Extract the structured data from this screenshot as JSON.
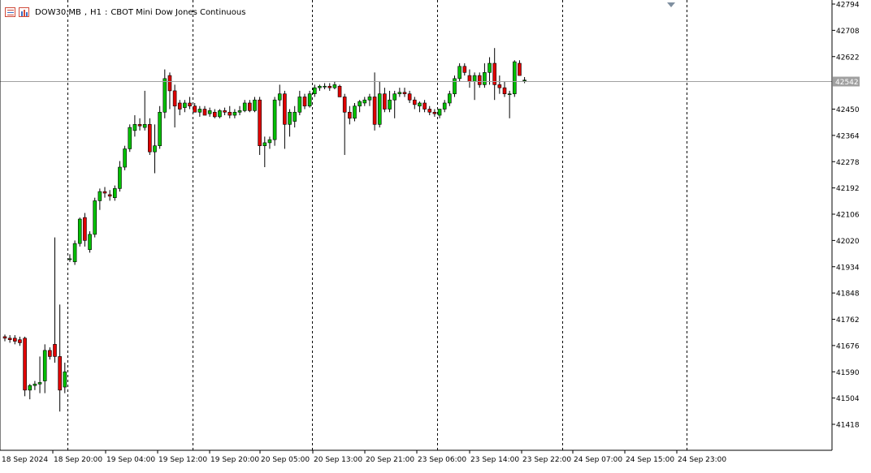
{
  "header": {
    "symbol": "DOW30.MB",
    "timeframe": "H1",
    "description": "CBOT Mini Dow Jones Continuous",
    "icons": [
      "market-watch-icon",
      "chart-window-icon"
    ]
  },
  "price_labels": [
    "42794",
    "42708",
    "42622",
    "42542",
    "42450",
    "42364",
    "42278",
    "42192",
    "42106",
    "42020",
    "41934",
    "41848",
    "41762",
    "41676",
    "41590",
    "41504",
    "41418"
  ],
  "time_labels": [
    "18 Sep 2024",
    "18 Sep 20:00",
    "19 Sep 04:00",
    "19 Sep 12:00",
    "19 Sep 20:00",
    "20 Sep 05:00",
    "20 Sep 13:00",
    "20 Sep 21:00",
    "23 Sep 06:00",
    "23 Sep 14:00",
    "23 Sep 22:00",
    "24 Sep 07:00",
    "24 Sep 15:00",
    "24 Sep 23:00"
  ],
  "colors": {
    "bull": "#00c000",
    "bear": "#e00000",
    "wick": "#000000",
    "grid": "#000000",
    "price_line": "#a0a0a0",
    "bid_marker": "#a0a0a0",
    "background": "#ffffff"
  },
  "chart_data": {
    "type": "candlestick",
    "symbol": "DOW30.MB",
    "timeframe": "H1",
    "y_range": [
      41360,
      42800
    ],
    "current_price": 42542,
    "bid_label": "42542",
    "separators_after_index": [
      12,
      37,
      61,
      86,
      111,
      136
    ],
    "candles": [
      [
        41705,
        41712,
        41690,
        41700
      ],
      [
        41700,
        41710,
        41685,
        41695
      ],
      [
        41700,
        41710,
        41680,
        41690
      ],
      [
        41695,
        41705,
        41675,
        41685
      ],
      [
        41700,
        41705,
        41510,
        41530
      ],
      [
        41530,
        41550,
        41500,
        41545
      ],
      [
        41545,
        41560,
        41530,
        41550
      ],
      [
        41550,
        41640,
        41520,
        41555
      ],
      [
        41560,
        41680,
        41520,
        41660
      ],
      [
        41660,
        41670,
        41630,
        41640
      ],
      [
        41680,
        42030,
        41620,
        41640
      ],
      [
        41640,
        41810,
        41460,
        41530
      ],
      [
        41540,
        41620,
        41520,
        41590
      ],
      [
        41960,
        41975,
        41950,
        41960
      ],
      [
        41950,
        42020,
        41940,
        42010
      ],
      [
        42010,
        42095,
        42000,
        42090
      ],
      [
        42095,
        42110,
        42000,
        42020
      ],
      [
        41990,
        42050,
        41980,
        42040
      ],
      [
        42040,
        42160,
        42030,
        42150
      ],
      [
        42150,
        42190,
        42120,
        42180
      ],
      [
        42180,
        42195,
        42160,
        42175
      ],
      [
        42170,
        42185,
        42150,
        42165
      ],
      [
        42160,
        42200,
        42150,
        42190
      ],
      [
        42190,
        42280,
        42180,
        42260
      ],
      [
        42260,
        42330,
        42250,
        42320
      ],
      [
        42320,
        42400,
        42310,
        42390
      ],
      [
        42380,
        42430,
        42360,
        42400
      ],
      [
        42400,
        42420,
        42380,
        42395
      ],
      [
        42390,
        42510,
        42380,
        42400
      ],
      [
        42400,
        42420,
        42300,
        42310
      ],
      [
        42310,
        42400,
        42240,
        42330
      ],
      [
        42330,
        42460,
        42320,
        42440
      ],
      [
        42440,
        42580,
        42420,
        42550
      ],
      [
        42560,
        42570,
        42450,
        42510
      ],
      [
        42510,
        42530,
        42390,
        42460
      ],
      [
        42470,
        42480,
        42430,
        42450
      ],
      [
        42455,
        42480,
        42440,
        42470
      ],
      [
        42470,
        42490,
        42450,
        42460
      ],
      [
        42460,
        42470,
        42440,
        42440
      ],
      [
        42440,
        42460,
        42425,
        42450
      ],
      [
        42450,
        42460,
        42430,
        42430
      ],
      [
        42435,
        42455,
        42425,
        42445
      ],
      [
        42440,
        42450,
        42420,
        42425
      ],
      [
        42425,
        42450,
        42420,
        42445
      ],
      [
        42445,
        42455,
        42430,
        42440
      ],
      [
        42440,
        42460,
        42420,
        42430
      ],
      [
        42430,
        42450,
        42420,
        42440
      ],
      [
        42440,
        42460,
        42430,
        42445
      ],
      [
        42445,
        42480,
        42440,
        42470
      ],
      [
        42470,
        42480,
        42440,
        42445
      ],
      [
        42445,
        42490,
        42440,
        42480
      ],
      [
        42480,
        42490,
        42300,
        42330
      ],
      [
        42330,
        42360,
        42260,
        42340
      ],
      [
        42340,
        42360,
        42320,
        42350
      ],
      [
        42350,
        42490,
        42330,
        42480
      ],
      [
        42480,
        42530,
        42460,
        42500
      ],
      [
        42500,
        42510,
        42320,
        42400
      ],
      [
        42400,
        42450,
        42360,
        42440
      ],
      [
        42410,
        42460,
        42390,
        42440
      ],
      [
        42440,
        42510,
        42430,
        42490
      ],
      [
        42490,
        42500,
        42450,
        42460
      ],
      [
        42460,
        42510,
        42455,
        42500
      ],
      [
        42500,
        42530,
        42490,
        42520
      ],
      [
        42520,
        42530,
        42510,
        42525
      ],
      [
        42525,
        42535,
        42515,
        42525
      ],
      [
        42525,
        42535,
        42510,
        42520
      ],
      [
        42520,
        42540,
        42515,
        42530
      ],
      [
        42525,
        42530,
        42490,
        42490
      ],
      [
        42490,
        42500,
        42300,
        42440
      ],
      [
        42440,
        42460,
        42400,
        42420
      ],
      [
        42420,
        42470,
        42410,
        42460
      ],
      [
        42460,
        42480,
        42440,
        42475
      ],
      [
        42470,
        42490,
        42460,
        42480
      ],
      [
        42480,
        42500,
        42460,
        42490
      ],
      [
        42490,
        42570,
        42380,
        42400
      ],
      [
        42400,
        42540,
        42390,
        42500
      ],
      [
        42500,
        42520,
        42440,
        42450
      ],
      [
        42450,
        42510,
        42440,
        42480
      ],
      [
        42480,
        42510,
        42420,
        42500
      ],
      [
        42500,
        42520,
        42490,
        42505
      ],
      [
        42505,
        42520,
        42490,
        42500
      ],
      [
        42500,
        42510,
        42470,
        42480
      ],
      [
        42480,
        42490,
        42450,
        42465
      ],
      [
        42460,
        42475,
        42440,
        42470
      ],
      [
        42470,
        42480,
        42440,
        42450
      ],
      [
        42450,
        42460,
        42430,
        42440
      ],
      [
        42440,
        42450,
        42425,
        42435
      ],
      [
        42430,
        42450,
        42420,
        42450
      ],
      [
        42450,
        42480,
        42440,
        42470
      ],
      [
        42470,
        42510,
        42460,
        42500
      ],
      [
        42500,
        42560,
        42490,
        42550
      ],
      [
        42550,
        42600,
        42540,
        42590
      ],
      [
        42590,
        42600,
        42560,
        42570
      ],
      [
        42560,
        42580,
        42520,
        42540
      ],
      [
        42540,
        42570,
        42480,
        42560
      ],
      [
        42560,
        42570,
        42520,
        42530
      ],
      [
        42530,
        42600,
        42520,
        42570
      ],
      [
        42570,
        42620,
        42530,
        42600
      ],
      [
        42600,
        42650,
        42480,
        42530
      ],
      [
        42530,
        42560,
        42500,
        42520
      ],
      [
        42520,
        42540,
        42490,
        42500
      ],
      [
        42500,
        42510,
        42420,
        42500
      ],
      [
        42500,
        42610,
        42490,
        42605
      ],
      [
        42600,
        42610,
        42560,
        42560
      ],
      [
        42545,
        42555,
        42535,
        42545
      ]
    ]
  }
}
